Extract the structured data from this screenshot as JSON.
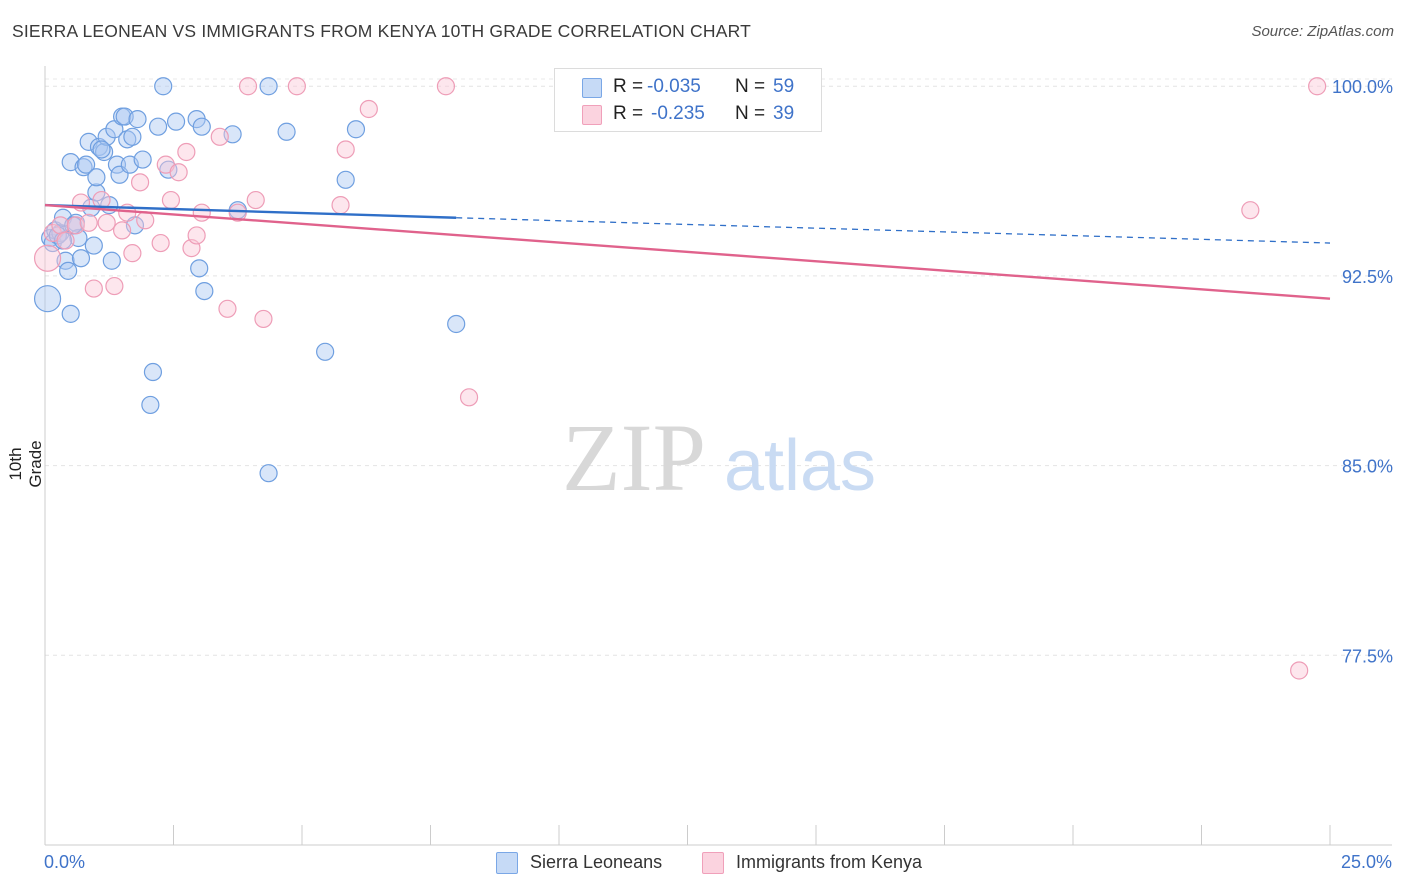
{
  "title": "SIERRA LEONEAN VS IMMIGRANTS FROM KENYA 10TH GRADE CORRELATION CHART",
  "source": "Source: ZipAtlas.com",
  "watermark": {
    "zip": "ZIP",
    "atlas": "atlas"
  },
  "stats": [
    {
      "r_label": "R =",
      "r_value": "-0.035",
      "n_label": "N =",
      "n_value": "59",
      "color": "#7aa7e6"
    },
    {
      "r_label": "R =",
      "r_value": "-0.235",
      "n_label": "N =",
      "n_value": "39",
      "color": "#f0a0ba"
    }
  ],
  "legend": [
    {
      "label": "Sierra Leoneans",
      "color": "#7aa7e6"
    },
    {
      "label": "Immigrants from Kenya",
      "color": "#f0a0ba"
    }
  ],
  "chart_data": {
    "type": "scatter",
    "title": "SIERRA LEONEAN VS IMMIGRANTS FROM KENYA 10TH GRADE CORRELATION CHART",
    "xlabel": "",
    "ylabel": "10th Grade",
    "xlim": [
      0.0,
      25.0
    ],
    "ylim": [
      70.0,
      100.8
    ],
    "x_tick_labels": [
      "0.0%",
      "25.0%"
    ],
    "y_ticks": [
      100.0,
      92.5,
      85.0,
      77.5
    ],
    "y_tick_labels": [
      "100.0%",
      "92.5%",
      "85.0%",
      "77.5%"
    ],
    "grid": true,
    "series": [
      {
        "name": "Sierra Leoneans",
        "color": "#7aa7e6",
        "trend": {
          "x0": 0.0,
          "y0": 95.3,
          "x1": 8.0,
          "y1": 94.8,
          "dash_to_x": 25.0,
          "dash_to_y": 93.8,
          "color": "#2f6fc8"
        },
        "points": [
          {
            "x": 0.05,
            "y": 91.6
          },
          {
            "x": 0.1,
            "y": 94.0
          },
          {
            "x": 0.15,
            "y": 93.8
          },
          {
            "x": 0.2,
            "y": 94.3
          },
          {
            "x": 0.3,
            "y": 94.2
          },
          {
            "x": 0.35,
            "y": 94.8
          },
          {
            "x": 0.4,
            "y": 93.1
          },
          {
            "x": 0.45,
            "y": 92.7
          },
          {
            "x": 0.5,
            "y": 91.0
          },
          {
            "x": 0.5,
            "y": 97.0
          },
          {
            "x": 0.6,
            "y": 94.6
          },
          {
            "x": 0.65,
            "y": 94.0
          },
          {
            "x": 0.7,
            "y": 93.2
          },
          {
            "x": 0.75,
            "y": 96.8
          },
          {
            "x": 0.8,
            "y": 96.9
          },
          {
            "x": 0.85,
            "y": 97.8
          },
          {
            "x": 0.9,
            "y": 95.2
          },
          {
            "x": 0.95,
            "y": 93.7
          },
          {
            "x": 1.0,
            "y": 95.8
          },
          {
            "x": 1.0,
            "y": 96.4
          },
          {
            "x": 1.05,
            "y": 97.6
          },
          {
            "x": 1.15,
            "y": 97.4
          },
          {
            "x": 1.2,
            "y": 98.0
          },
          {
            "x": 1.25,
            "y": 95.3
          },
          {
            "x": 1.3,
            "y": 93.1
          },
          {
            "x": 1.35,
            "y": 98.3
          },
          {
            "x": 1.4,
            "y": 96.9
          },
          {
            "x": 1.45,
            "y": 96.5
          },
          {
            "x": 1.5,
            "y": 98.8
          },
          {
            "x": 1.55,
            "y": 98.8
          },
          {
            "x": 1.6,
            "y": 97.9
          },
          {
            "x": 1.65,
            "y": 96.9
          },
          {
            "x": 1.75,
            "y": 94.5
          },
          {
            "x": 1.7,
            "y": 98.0
          },
          {
            "x": 1.9,
            "y": 97.1
          },
          {
            "x": 2.05,
            "y": 87.4
          },
          {
            "x": 2.1,
            "y": 88.7
          },
          {
            "x": 2.2,
            "y": 98.4
          },
          {
            "x": 2.3,
            "y": 100.0
          },
          {
            "x": 2.55,
            "y": 98.6
          },
          {
            "x": 2.95,
            "y": 98.7
          },
          {
            "x": 3.0,
            "y": 92.8
          },
          {
            "x": 3.05,
            "y": 98.4
          },
          {
            "x": 3.1,
            "y": 91.9
          },
          {
            "x": 3.65,
            "y": 98.1
          },
          {
            "x": 3.75,
            "y": 95.1
          },
          {
            "x": 4.35,
            "y": 100.0
          },
          {
            "x": 4.7,
            "y": 98.2
          },
          {
            "x": 5.45,
            "y": 89.5
          },
          {
            "x": 5.85,
            "y": 96.3
          },
          {
            "x": 6.05,
            "y": 98.3
          },
          {
            "x": 8.0,
            "y": 90.6
          },
          {
            "x": 4.35,
            "y": 84.7
          },
          {
            "x": 0.25,
            "y": 94.1
          },
          {
            "x": 1.1,
            "y": 97.5
          },
          {
            "x": 0.55,
            "y": 94.5
          },
          {
            "x": 1.8,
            "y": 98.7
          },
          {
            "x": 0.35,
            "y": 93.9
          },
          {
            "x": 2.4,
            "y": 96.7
          }
        ]
      },
      {
        "name": "Immigrants from Kenya",
        "color": "#f0a0ba",
        "trend": {
          "x0": 0.0,
          "y0": 95.3,
          "x1": 25.0,
          "y1": 91.6,
          "color": "#e0628c"
        },
        "points": [
          {
            "x": 0.05,
            "y": 93.2
          },
          {
            "x": 0.15,
            "y": 94.2
          },
          {
            "x": 0.3,
            "y": 94.5
          },
          {
            "x": 0.4,
            "y": 93.9
          },
          {
            "x": 0.6,
            "y": 94.5
          },
          {
            "x": 0.7,
            "y": 95.4
          },
          {
            "x": 0.85,
            "y": 94.6
          },
          {
            "x": 0.95,
            "y": 92.0
          },
          {
            "x": 1.1,
            "y": 95.5
          },
          {
            "x": 1.2,
            "y": 94.6
          },
          {
            "x": 1.35,
            "y": 92.1
          },
          {
            "x": 1.5,
            "y": 94.3
          },
          {
            "x": 1.6,
            "y": 95.0
          },
          {
            "x": 1.7,
            "y": 93.4
          },
          {
            "x": 1.85,
            "y": 96.2
          },
          {
            "x": 1.95,
            "y": 94.7
          },
          {
            "x": 2.25,
            "y": 93.8
          },
          {
            "x": 2.35,
            "y": 96.9
          },
          {
            "x": 2.45,
            "y": 95.5
          },
          {
            "x": 2.6,
            "y": 96.6
          },
          {
            "x": 2.75,
            "y": 97.4
          },
          {
            "x": 2.85,
            "y": 93.6
          },
          {
            "x": 2.95,
            "y": 94.1
          },
          {
            "x": 3.05,
            "y": 95.0
          },
          {
            "x": 3.4,
            "y": 98.0
          },
          {
            "x": 3.55,
            "y": 91.2
          },
          {
            "x": 3.75,
            "y": 95.0
          },
          {
            "x": 3.95,
            "y": 100.0
          },
          {
            "x": 4.1,
            "y": 95.5
          },
          {
            "x": 4.25,
            "y": 90.8
          },
          {
            "x": 4.9,
            "y": 100.0
          },
          {
            "x": 5.75,
            "y": 95.3
          },
          {
            "x": 5.85,
            "y": 97.5
          },
          {
            "x": 6.3,
            "y": 99.1
          },
          {
            "x": 7.8,
            "y": 100.0
          },
          {
            "x": 8.25,
            "y": 87.7
          },
          {
            "x": 23.45,
            "y": 95.1
          },
          {
            "x": 24.4,
            "y": 76.9
          },
          {
            "x": 24.75,
            "y": 100.0
          }
        ]
      }
    ]
  }
}
